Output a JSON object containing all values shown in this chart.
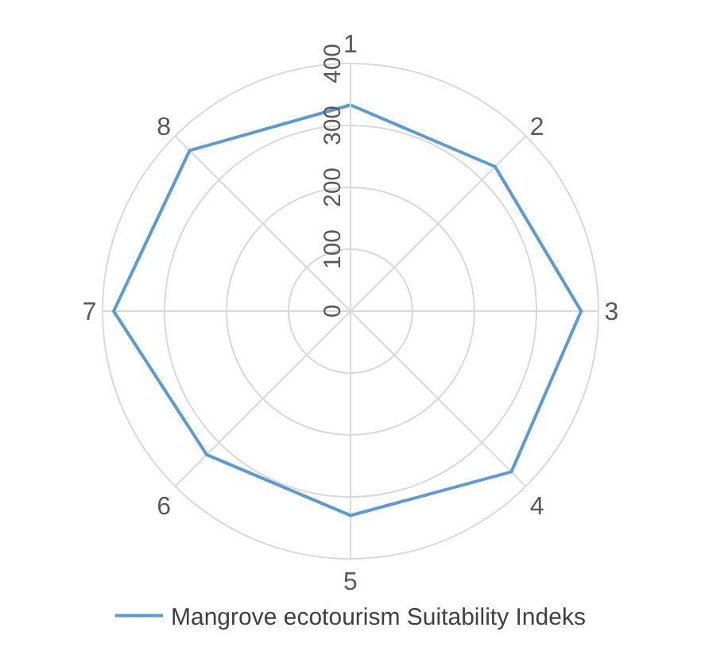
{
  "chart_data": {
    "type": "radar",
    "categories": [
      "1",
      "2",
      "3",
      "4",
      "5",
      "6",
      "7",
      "8"
    ],
    "series": [
      {
        "name": "Mangrove ecotourism Suitability Indeks",
        "color": "#5b9bd5",
        "values": [
          333,
          330,
          372,
          367,
          330,
          328,
          382,
          367
        ]
      }
    ],
    "ylim": [
      0,
      400
    ],
    "yticks": [
      0,
      100,
      200,
      300,
      400
    ],
    "grid": true,
    "legend": "bottom",
    "marker": "none",
    "line_style": "solid"
  }
}
